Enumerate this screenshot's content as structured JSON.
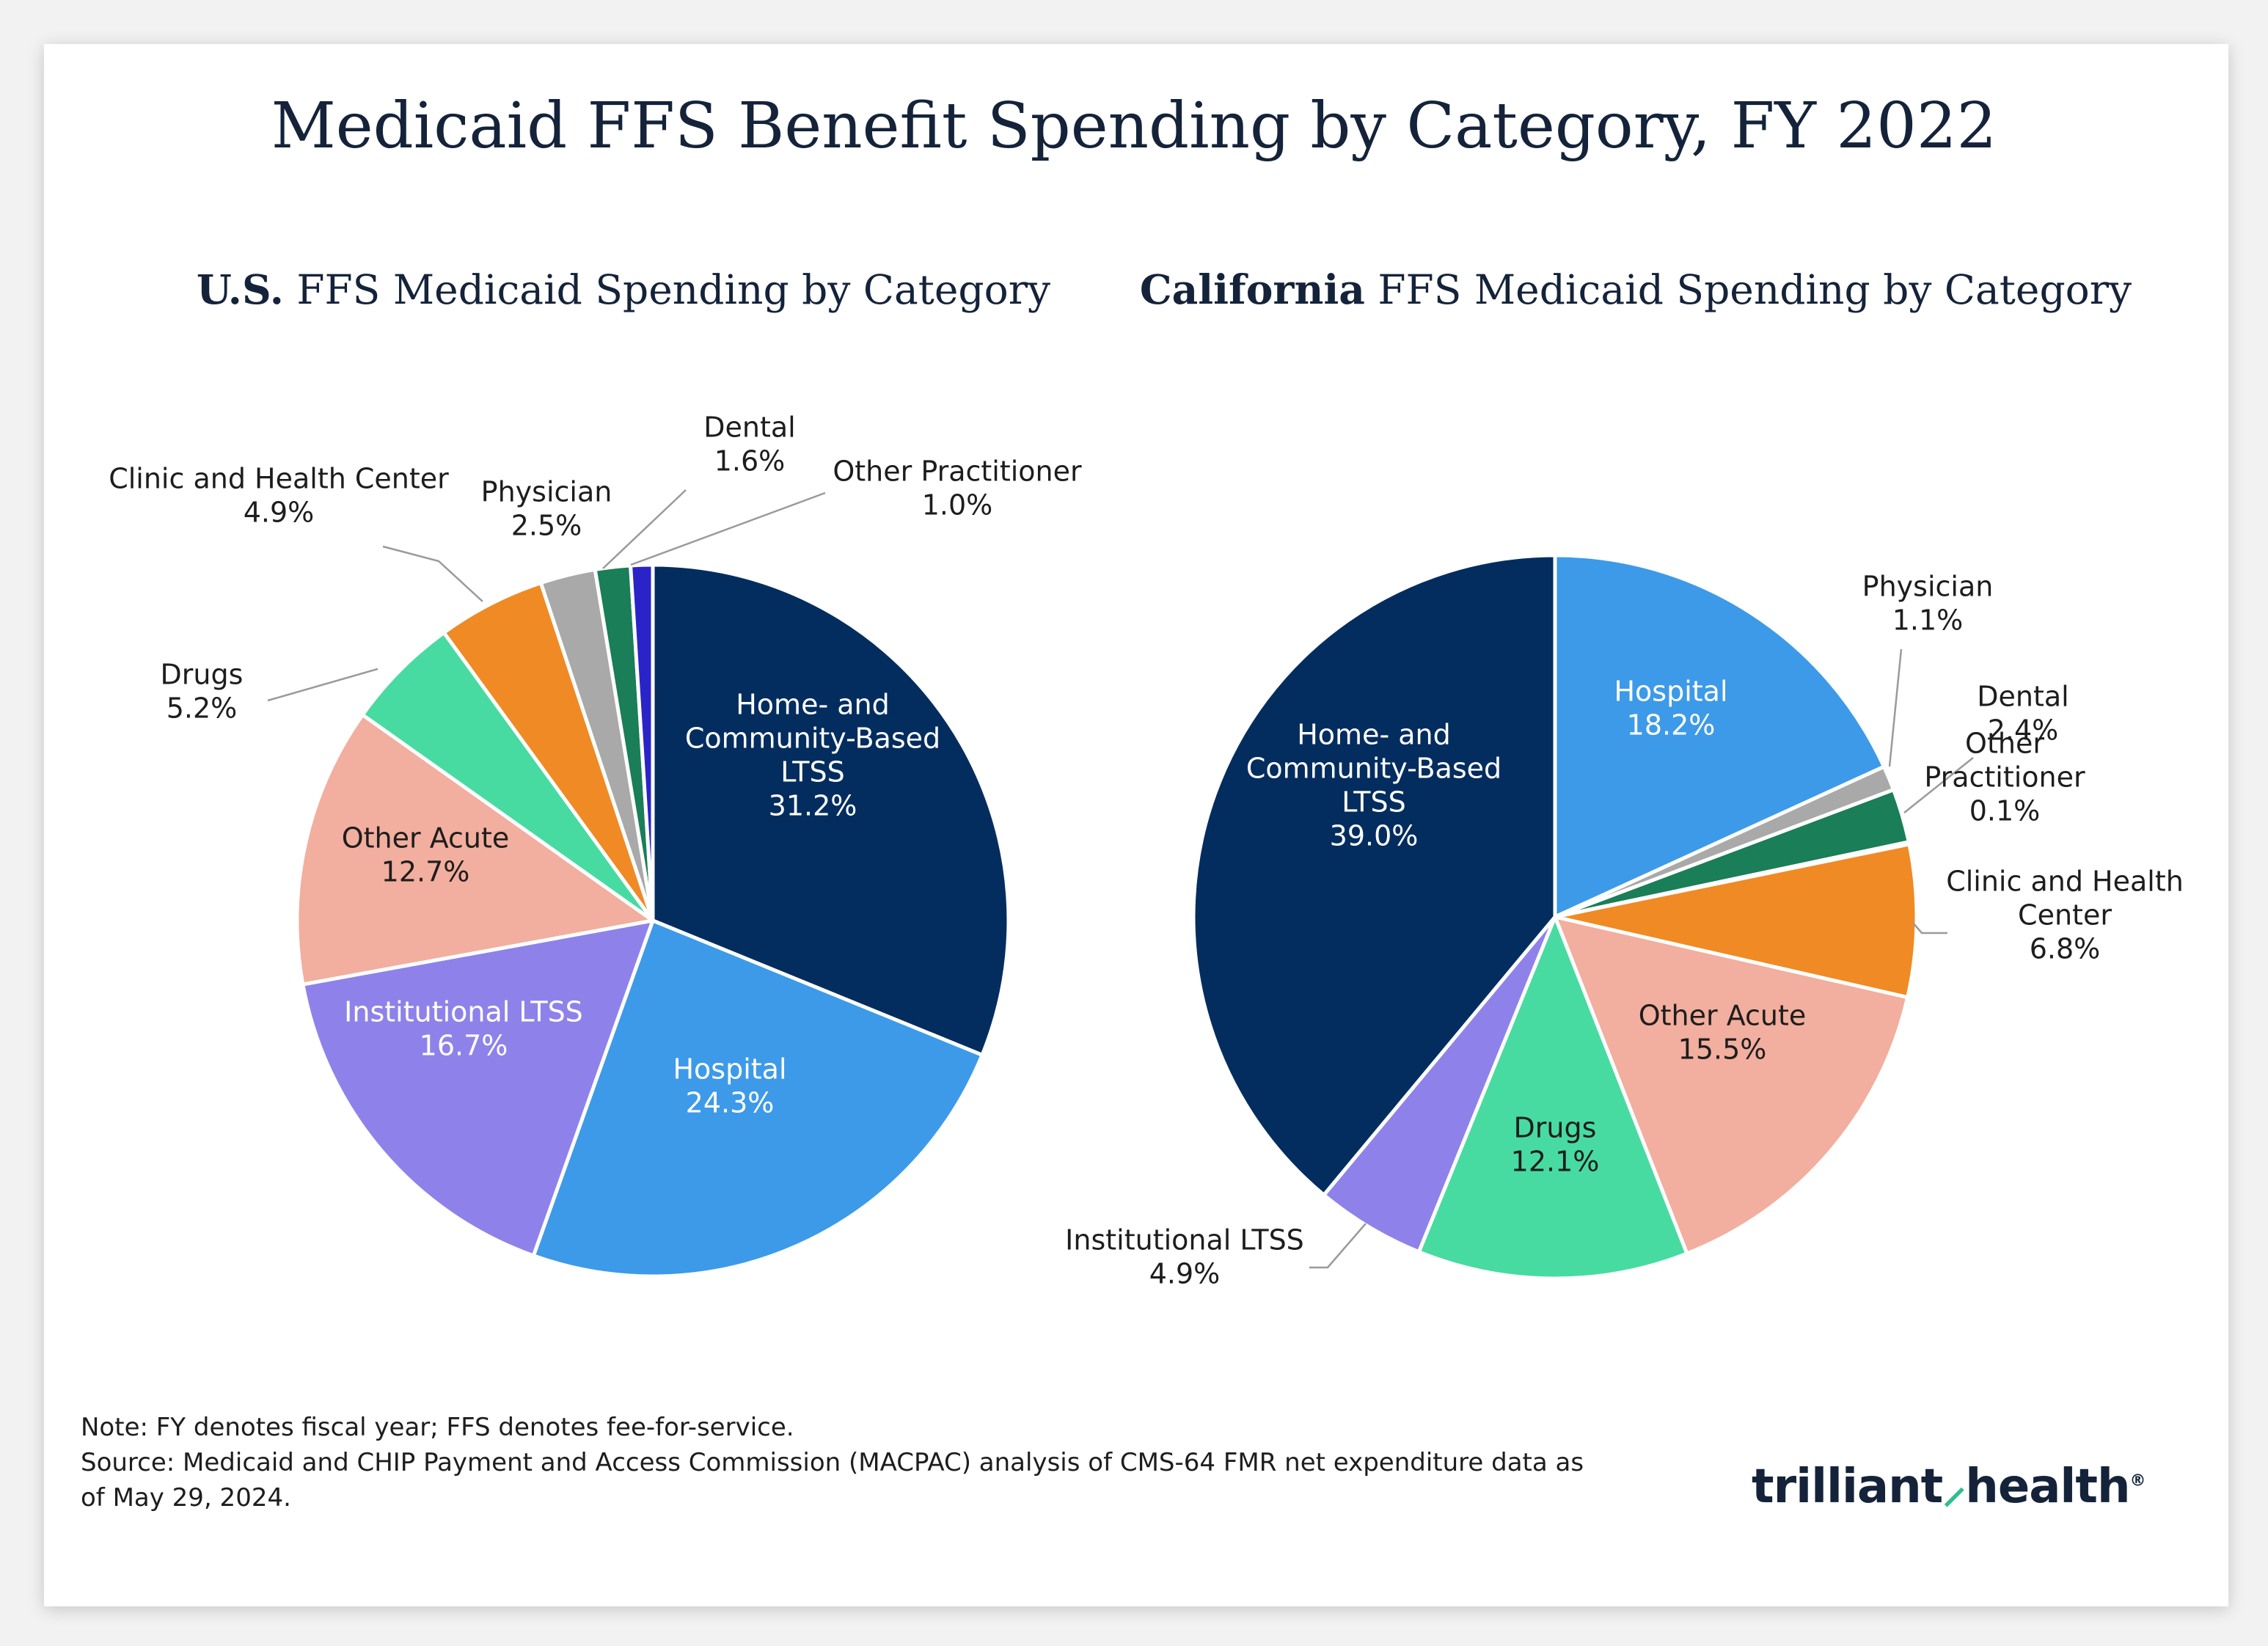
{
  "title": "Medicaid FFS Benefit Spending by Category, FY 2022",
  "subtitles": {
    "us": {
      "bold": "U.S.",
      "rest": " FFS Medicaid Spending by Category"
    },
    "ca": {
      "bold": "California",
      "rest": " FFS Medicaid Spending by Category"
    }
  },
  "colors": {
    "home_community": "#042d5f",
    "hospital": "#3d9ae8",
    "institutional": "#8e82ea",
    "other_acute": "#f2ae9e",
    "drugs": "#47dba2",
    "clinic": "#f08a24",
    "physician": "#a9a9a9",
    "dental": "#1a7e58",
    "other_practitioner": "#2a24c8"
  },
  "chart_data": [
    {
      "type": "pie",
      "title": "U.S. FFS Medicaid Spending by Category",
      "slices": [
        {
          "label": "Home- and Community-Based LTSS",
          "value": 31.2,
          "display": "31.2%",
          "color_key": "home_community",
          "label_lines": [
            "Home- and",
            "Community-Based",
            "LTSS"
          ]
        },
        {
          "label": "Hospital",
          "value": 24.3,
          "display": "24.3%",
          "color_key": "hospital",
          "label_lines": [
            "Hospital"
          ]
        },
        {
          "label": "Institutional LTSS",
          "value": 16.7,
          "display": "16.7%",
          "color_key": "institutional",
          "label_lines": [
            "Institutional LTSS"
          ]
        },
        {
          "label": "Other Acute",
          "value": 12.7,
          "display": "12.7%",
          "color_key": "other_acute",
          "label_lines": [
            "Other Acute"
          ]
        },
        {
          "label": "Drugs",
          "value": 5.2,
          "display": "5.2%",
          "color_key": "drugs",
          "label_lines": [
            "Drugs"
          ]
        },
        {
          "label": "Clinic and Health Center",
          "value": 4.9,
          "display": "4.9%",
          "color_key": "clinic",
          "label_lines": [
            "Clinic and Health Center"
          ]
        },
        {
          "label": "Physician",
          "value": 2.5,
          "display": "2.5%",
          "color_key": "physician",
          "label_lines": [
            "Physician"
          ]
        },
        {
          "label": "Dental",
          "value": 1.6,
          "display": "1.6%",
          "color_key": "dental",
          "label_lines": [
            "Dental"
          ]
        },
        {
          "label": "Other Practitioner",
          "value": 1.0,
          "display": "1.0%",
          "color_key": "other_practitioner",
          "label_lines": [
            "Other Practitioner"
          ]
        }
      ]
    },
    {
      "type": "pie",
      "title": "California FFS Medicaid Spending by Category",
      "slices": [
        {
          "label": "Hospital",
          "value": 18.2,
          "display": "18.2%",
          "color_key": "hospital",
          "label_lines": [
            "Hospital"
          ]
        },
        {
          "label": "Physician",
          "value": 1.1,
          "display": "1.1%",
          "color_key": "physician",
          "label_lines": [
            "Physician"
          ]
        },
        {
          "label": "Dental",
          "value": 2.4,
          "display": "2.4%",
          "color_key": "dental",
          "label_lines": [
            "Dental"
          ]
        },
        {
          "label": "Other Practitioner",
          "value": 0.1,
          "display": "0.1%",
          "color_key": "other_practitioner",
          "label_lines": [
            "Other",
            "Practitioner"
          ]
        },
        {
          "label": "Clinic and Health Center",
          "value": 6.8,
          "display": "6.8%",
          "color_key": "clinic",
          "label_lines": [
            "Clinic and Health",
            "Center"
          ]
        },
        {
          "label": "Other Acute",
          "value": 15.5,
          "display": "15.5%",
          "color_key": "other_acute",
          "label_lines": [
            "Other Acute"
          ]
        },
        {
          "label": "Drugs",
          "value": 12.1,
          "display": "12.1%",
          "color_key": "drugs",
          "label_lines": [
            "Drugs"
          ]
        },
        {
          "label": "Institutional LTSS",
          "value": 4.9,
          "display": "4.9%",
          "color_key": "institutional",
          "label_lines": [
            "Institutional LTSS"
          ]
        },
        {
          "label": "Home- and Community-Based LTSS",
          "value": 39.0,
          "display": "39.0%",
          "color_key": "home_community",
          "label_lines": [
            "Home- and",
            "Community-Based",
            "LTSS"
          ]
        }
      ]
    }
  ],
  "note": {
    "line1": "Note: FY denotes fiscal year; FFS denotes fee-for-service.",
    "line2": "Source: Medicaid and CHIP Payment and Access Commission (MACPAC) analysis of CMS-64 FMR net expenditure data as",
    "line3": "of May 29, 2024."
  },
  "logo": {
    "part1": "trilliant",
    "part2": "health",
    "mark": "®"
  }
}
